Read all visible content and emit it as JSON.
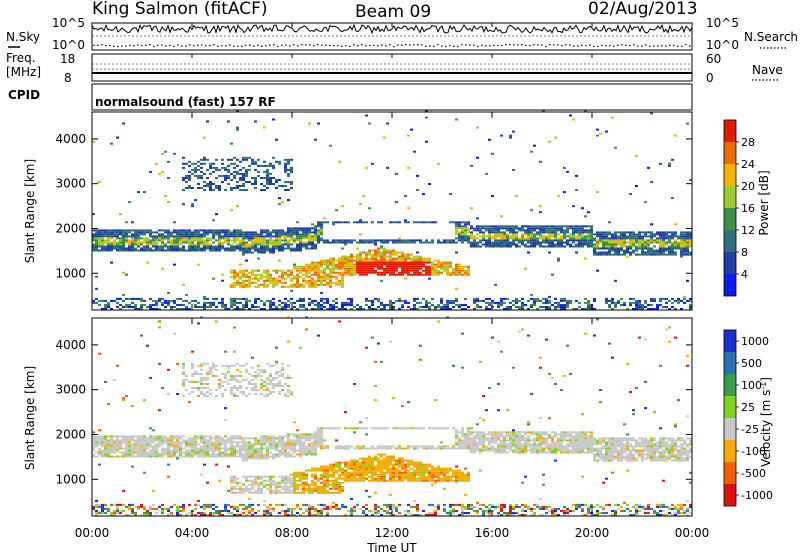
{
  "header": {
    "station": "King Salmon (fitACF)",
    "beam": "Beam 09",
    "date": "02/Aug/2013"
  },
  "noise_panel": {
    "left_label": "N.Sky",
    "right_label": "N.Search",
    "left_ticks": [
      "10^5",
      "10^0"
    ],
    "right_ticks": [
      "10^5",
      "10^0"
    ]
  },
  "freq_panel": {
    "left_label_1": "Freq.",
    "left_label_2": "[MHz]",
    "right_label": "Nave",
    "left_ticks": [
      "18",
      "8"
    ],
    "right_ticks": [
      "60",
      "0"
    ]
  },
  "cpid": {
    "label": "CPID",
    "mode": "normalsound (fast) 157 RF"
  },
  "chart_data": [
    {
      "type": "heatmap",
      "name": "power",
      "ylabel": "Slant Range [km]",
      "yticks": [
        1000,
        2000,
        3000,
        4000
      ],
      "ylim": [
        180,
        4600
      ],
      "xlim_hours": [
        0,
        24
      ],
      "colorbar": {
        "label": "Power [dB]",
        "ticks": [
          "4",
          "8",
          "12",
          "16",
          "20",
          "24",
          "28"
        ],
        "colors": [
          "#0c1cf0",
          "#1e3fa8",
          "#2f6f7c",
          "#3e8e4a",
          "#9ccc2e",
          "#f6b300",
          "#f06a00",
          "#e01b00"
        ]
      },
      "features": [
        {
          "label": "main scatter band",
          "range_km": [
            1400,
            2000
          ],
          "hours": [
            0,
            24
          ]
        },
        {
          "label": "strong echo patch",
          "range_km": [
            900,
            1600
          ],
          "hours": [
            8,
            15
          ]
        },
        {
          "label": "high range scatter",
          "range_km": [
            2800,
            3600
          ],
          "hours": [
            3.5,
            8
          ]
        }
      ]
    },
    {
      "type": "heatmap",
      "name": "velocity",
      "ylabel": "Slant Range [km]",
      "yticks": [
        1000,
        2000,
        3000,
        4000
      ],
      "ylim": [
        180,
        4600
      ],
      "xlim_hours": [
        0,
        24
      ],
      "colorbar": {
        "label": "Velocity [m s^-1]",
        "ticks": [
          "1000",
          "500",
          "100",
          "25",
          "-25",
          "-100",
          "-500",
          "-1000"
        ],
        "colors": [
          "#1b2fd0",
          "#2a6fb0",
          "#3a9a50",
          "#7ed320",
          "#c8c8c8",
          "#f8a800",
          "#f06000",
          "#e01010"
        ]
      }
    }
  ],
  "x_axis": {
    "ticks": [
      "00:00",
      "04:00",
      "08:00",
      "12:00",
      "16:00",
      "20:00",
      "00:00"
    ],
    "label": "Time UT"
  }
}
